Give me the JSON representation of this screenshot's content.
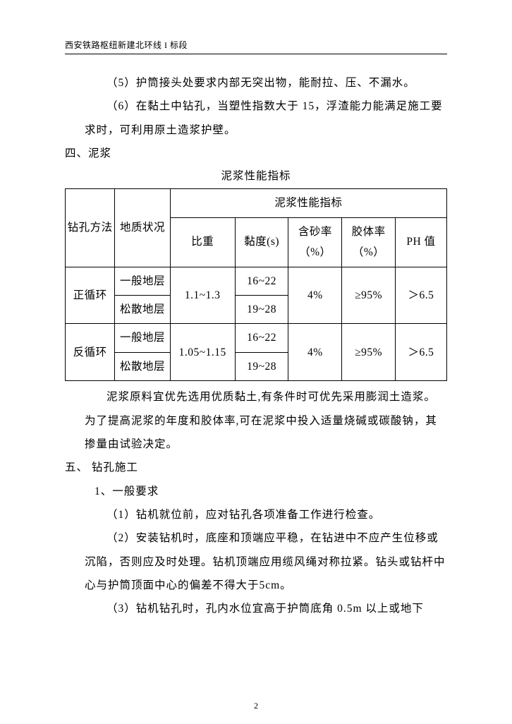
{
  "header": "西安铁路枢纽新建北环线 I 标段",
  "paragraphs": {
    "p5": "（5）护筒接头处要求内部无突出物，能耐拉、压、不漏水。",
    "p6": "（6）在黏土中钻孔，当塑性指数大于 15，浮渣能力能满足施工要求时，可利用原土造浆护壁。"
  },
  "section4": {
    "title": "四、泥浆",
    "caption": "泥浆性能指标"
  },
  "table": {
    "head_method": "钻孔方法",
    "head_geo": "地质状况",
    "head_group": "泥浆性能指标",
    "head_bz": "比重",
    "head_nd": "黏度(s)",
    "head_hs": "含砂率（%）",
    "head_jt": "胶体率（%）",
    "head_ph": "PH 值",
    "r1_method": "正循环",
    "r1_geo1": "一般地层",
    "r1_geo2": "松散地层",
    "r1_bz": "1.1~1.3",
    "r1_nd1": "16~22",
    "r1_nd2": "19~28",
    "r1_hs": "4%",
    "r1_jt": "≥95%",
    "r1_ph": "＞6.5",
    "r2_method": "反循环",
    "r2_geo1": "一般地层",
    "r2_geo2": "松散地层",
    "r2_bz": "1.05~1.15",
    "r2_nd1": "16~22",
    "r2_nd2": "19~28",
    "r2_hs": "4%",
    "r2_jt": "≥95%",
    "r2_ph": "＞6.5"
  },
  "after_table": {
    "p1": "泥浆原料宜优先选用优质黏土,有条件时可优先采用膨润土造浆。为了提高泥浆的年度和胶体率,可在泥浆中投入适量烧碱或碳酸钠，其掺量由试验决定。"
  },
  "section5": {
    "title": "五、 钻孔施工",
    "sub1": "1、一般要求",
    "p1": "（1）钻机就位前，应对钻孔各项准备工作进行检查。",
    "p2": "（2）安装钻机时，底座和顶端应平稳，在钻进中不应产生位移或沉陷，否则应及时处理。钻机顶端应用缆风绳对称拉紧。钻头或钻杆中心与护筒顶面中心的偏差不得大于5cm。",
    "p3": "（3）钻机钻孔时，孔内水位宜高于护筒底角 0.5m 以上或地下"
  },
  "page_number": "2"
}
